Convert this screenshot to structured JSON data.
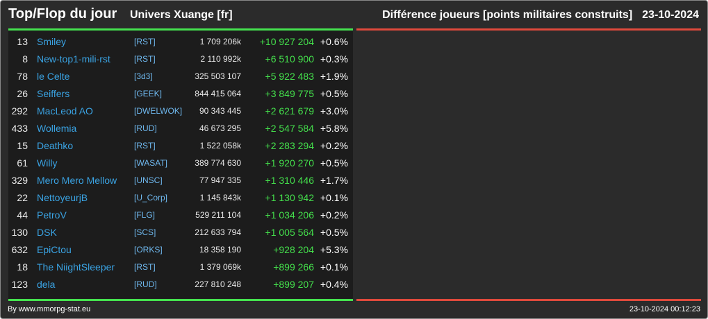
{
  "header": {
    "title": "Top/Flop du jour",
    "subtitle": "Univers Xuange [fr]",
    "description": "Différence joueurs [points militaires construits]",
    "date": "23-10-2024"
  },
  "colors": {
    "top_accent": "#45e34f",
    "flop_accent": "#e04a3c",
    "name_color": "#3aa3e3",
    "gain_color": "#44e04c"
  },
  "rows": [
    {
      "rank": "13",
      "name": "Smiley",
      "guild": "[RST]",
      "points": "1 709 206k",
      "diff": "+10 927 204",
      "pct": "+0.6%"
    },
    {
      "rank": "8",
      "name": "New-top1-mili-rst",
      "guild": "[RST]",
      "points": "2 110 992k",
      "diff": "+6 510 900",
      "pct": "+0.3%"
    },
    {
      "rank": "78",
      "name": "le Celte",
      "guild": "[3d3]",
      "points": "325 503 107",
      "diff": "+5 922 483",
      "pct": "+1.9%"
    },
    {
      "rank": "26",
      "name": "Seiffers",
      "guild": "[GEEK]",
      "points": "844 415 064",
      "diff": "+3 849 775",
      "pct": "+0.5%"
    },
    {
      "rank": "292",
      "name": "MacLeod AO",
      "guild": "[DWELWOK]",
      "points": "90 343 445",
      "diff": "+2 621 679",
      "pct": "+3.0%"
    },
    {
      "rank": "433",
      "name": "Wollemia",
      "guild": "[RUD]",
      "points": "46 673 295",
      "diff": "+2 547 584",
      "pct": "+5.8%"
    },
    {
      "rank": "15",
      "name": "Deathko",
      "guild": "[RST]",
      "points": "1 522 058k",
      "diff": "+2 283 294",
      "pct": "+0.2%"
    },
    {
      "rank": "61",
      "name": "Willy",
      "guild": "[WASAT]",
      "points": "389 774 630",
      "diff": "+1 920 270",
      "pct": "+0.5%"
    },
    {
      "rank": "329",
      "name": "Mero Mero Mellow",
      "guild": "[UNSC]",
      "points": "77 947 335",
      "diff": "+1 310 446",
      "pct": "+1.7%"
    },
    {
      "rank": "22",
      "name": "NettoyeurjB",
      "guild": "[U_Corp]",
      "points": "1 145 843k",
      "diff": "+1 130 942",
      "pct": "+0.1%"
    },
    {
      "rank": "44",
      "name": "PetroV",
      "guild": "[FLG]",
      "points": "529 211 104",
      "diff": "+1 034 206",
      "pct": "+0.2%"
    },
    {
      "rank": "130",
      "name": "DSK",
      "guild": "[SCS]",
      "points": "212 633 794",
      "diff": "+1 005 564",
      "pct": "+0.5%"
    },
    {
      "rank": "632",
      "name": "EpiCtou",
      "guild": "[ORKS]",
      "points": "18 358 190",
      "diff": "+928 204",
      "pct": "+5.3%"
    },
    {
      "rank": "18",
      "name": "The NiightSleeper",
      "guild": "[RST]",
      "points": "1 379 069k",
      "diff": "+899 266",
      "pct": "+0.1%"
    },
    {
      "rank": "123",
      "name": "dela",
      "guild": "[RUD]",
      "points": "227 810 248",
      "diff": "+899 207",
      "pct": "+0.4%"
    }
  ],
  "footer": {
    "credit": "By www.mmorpg-stat.eu",
    "timestamp": "23-10-2024 00:12:23"
  }
}
